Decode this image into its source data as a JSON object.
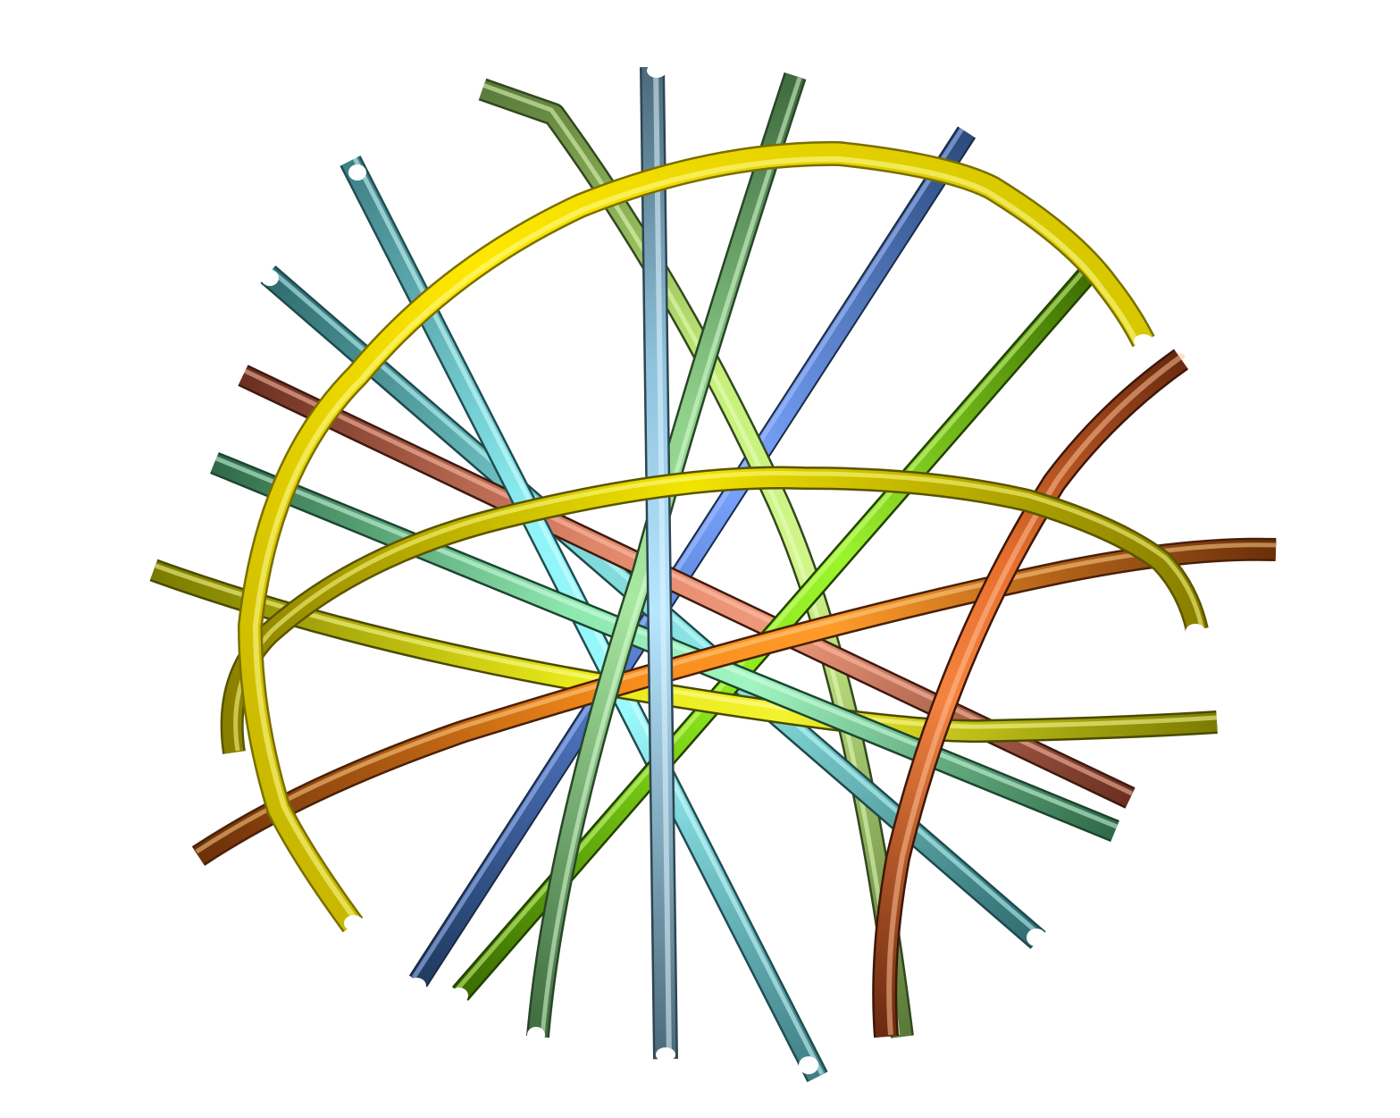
{
  "scene": {
    "description_visible_text": "",
    "background_color": "#ffffff",
    "tubes": [
      {
        "id": "tube-blue-1",
        "colors": [
          "#1f3a5f",
          "#6a93e0",
          "#7aa4ff",
          "#3b5ea8"
        ]
      },
      {
        "id": "tube-steel-vertical",
        "colors": [
          "#4b6a7a",
          "#a9dcf6",
          "#b7e6ff",
          "#5c7d8d"
        ]
      },
      {
        "id": "tube-olive-green",
        "colors": [
          "#5a7a3a",
          "#c6f07a",
          "#d2f58b",
          "#6e8e3e"
        ]
      },
      {
        "id": "tube-sage-green",
        "colors": [
          "#3f6b3f",
          "#9ad892",
          "#a8e8a0",
          "#4d7d4a"
        ]
      },
      {
        "id": "tube-cyan",
        "colors": [
          "#3e7e84",
          "#8ff4f8",
          "#9af9fd",
          "#4a8f94"
        ]
      },
      {
        "id": "tube-teal",
        "colors": [
          "#2e6a6e",
          "#7fd7d8",
          "#8ee6e6",
          "#3c7a7c"
        ]
      },
      {
        "id": "tube-salmon",
        "colors": [
          "#6a2e1f",
          "#e0876a",
          "#f09a7c",
          "#7a3a28"
        ]
      },
      {
        "id": "tube-mint",
        "colors": [
          "#2f6a48",
          "#8fe8b0",
          "#a0f4c0",
          "#3e7d58"
        ]
      },
      {
        "id": "tube-orange",
        "colors": [
          "#6a2e0a",
          "#f58a1a",
          "#ff9b2a",
          "#7a3a12"
        ]
      },
      {
        "id": "tube-lime",
        "colors": [
          "#3a6a00",
          "#8ae61a",
          "#9cf42c",
          "#4a7a0c"
        ]
      },
      {
        "id": "tube-rust",
        "colors": [
          "#6a2a10",
          "#e8702e",
          "#f58340",
          "#7a3818"
        ]
      },
      {
        "id": "tube-yellow-olive",
        "colors": [
          "#7a7a00",
          "#e8e81a",
          "#f2f22e",
          "#8a8a0a"
        ]
      },
      {
        "id": "tube-yellow-bright",
        "colors": [
          "#b8a800",
          "#ffe800",
          "#fff33a",
          "#c8b800"
        ]
      },
      {
        "id": "tube-yellow-mid",
        "colors": [
          "#8a8000",
          "#f2e400",
          "#fff01a",
          "#9a9000"
        ]
      }
    ]
  }
}
